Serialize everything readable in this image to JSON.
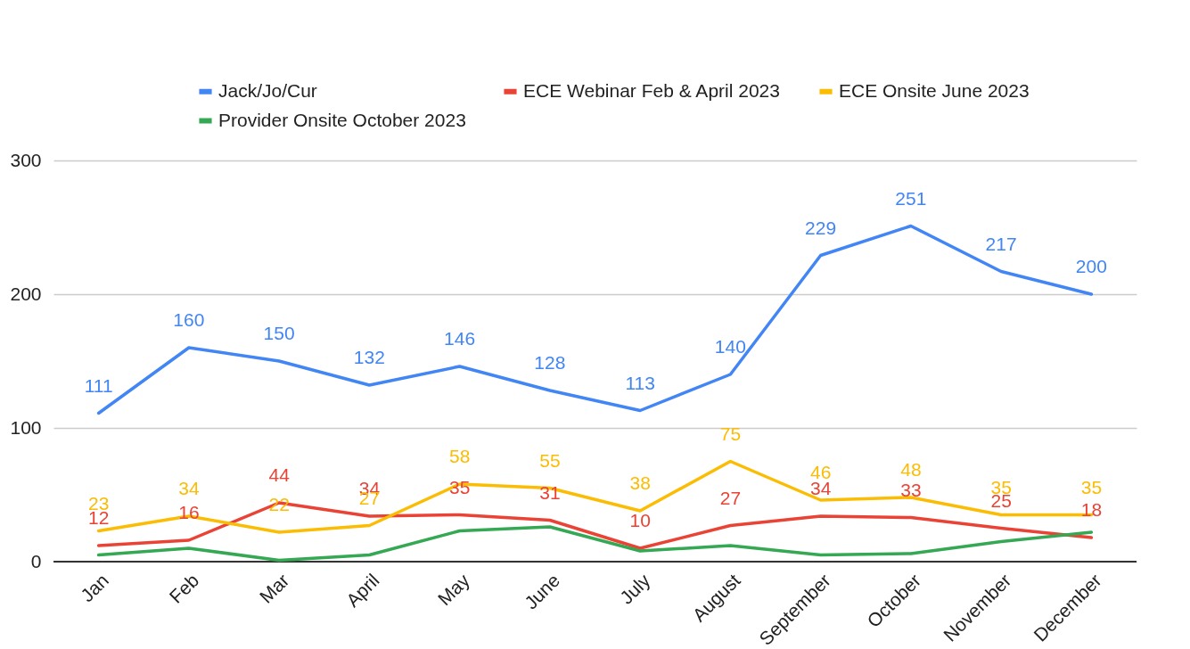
{
  "chart_data": {
    "type": "line",
    "categories": [
      "Jan",
      "Feb",
      "Mar",
      "April",
      "May",
      "June",
      "July",
      "August",
      "September",
      "October",
      "November",
      "December"
    ],
    "series": [
      {
        "name": "Jack/Jo/Cur",
        "color": "#4285f4",
        "values": [
          111,
          160,
          150,
          132,
          146,
          128,
          113,
          140,
          229,
          251,
          217,
          200
        ],
        "value_labels": [
          "111",
          "160",
          "150",
          "132",
          "146",
          "128",
          "113",
          "140",
          "229",
          "251",
          "217",
          "200"
        ]
      },
      {
        "name": "ECE Webinar Feb & April 2023",
        "color": "#ea4335",
        "values": [
          12,
          16,
          44,
          34,
          35,
          31,
          10,
          27,
          34,
          33,
          25,
          18
        ],
        "value_labels": [
          "12",
          "16",
          "44",
          "34",
          "35",
          "31",
          "10",
          "27",
          "34",
          "33",
          "25",
          "18"
        ]
      },
      {
        "name": "ECE Onsite June 2023",
        "color": "#fbbc04",
        "values": [
          23,
          34,
          22,
          27,
          58,
          55,
          38,
          75,
          46,
          48,
          35,
          35
        ],
        "value_labels": [
          "23",
          "34",
          "22",
          "27",
          "58",
          "55",
          "38",
          "75",
          "46",
          "48",
          "35",
          "35"
        ]
      },
      {
        "name": "Provider Onsite October 2023",
        "color": "#34a853",
        "values": [
          5,
          10,
          1,
          5,
          23,
          26,
          8,
          12,
          5,
          6,
          15,
          22
        ]
      }
    ],
    "ylim": [
      0,
      300
    ],
    "yticks": [
      0,
      100,
      200,
      300
    ],
    "grid": "y",
    "legend": "top",
    "marker": "none",
    "line_style": "solid"
  }
}
